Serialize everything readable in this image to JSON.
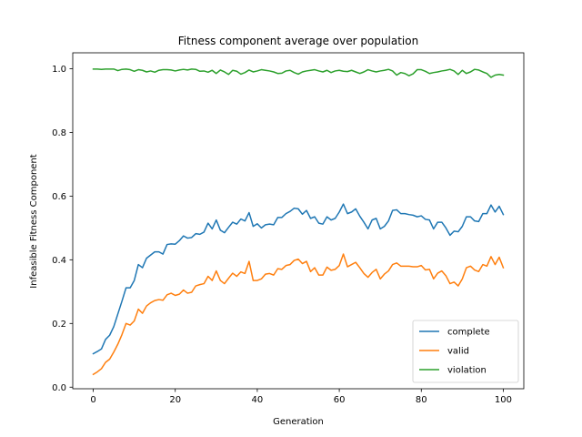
{
  "chart_data": {
    "type": "line",
    "title": "Fitness component average over population",
    "xlabel": "Generation",
    "ylabel": "Infeasible Fitness Component",
    "xlim": [
      -5,
      105
    ],
    "ylim": [
      -0.005,
      1.05
    ],
    "xticks": [
      0,
      20,
      40,
      60,
      80,
      100
    ],
    "yticks": [
      0.0,
      0.2,
      0.4,
      0.6,
      0.8,
      1.0
    ],
    "ytick_labels": [
      "0.0",
      "0.2",
      "0.4",
      "0.6",
      "0.8",
      "1.0"
    ],
    "legend_position": "lower-right",
    "grid": false,
    "x_start": 0,
    "x_step": 1,
    "series": [
      {
        "name": "complete",
        "color": "#1f77b4",
        "values": [
          0.105,
          0.112,
          0.12,
          0.15,
          0.163,
          0.19,
          0.23,
          0.27,
          0.312,
          0.312,
          0.335,
          0.385,
          0.375,
          0.405,
          0.415,
          0.425,
          0.425,
          0.418,
          0.448,
          0.45,
          0.449,
          0.46,
          0.475,
          0.468,
          0.47,
          0.482,
          0.48,
          0.487,
          0.515,
          0.497,
          0.525,
          0.493,
          0.485,
          0.502,
          0.518,
          0.512,
          0.528,
          0.522,
          0.548,
          0.505,
          0.513,
          0.5,
          0.51,
          0.512,
          0.51,
          0.533,
          0.533,
          0.545,
          0.552,
          0.562,
          0.56,
          0.543,
          0.555,
          0.53,
          0.535,
          0.515,
          0.512,
          0.535,
          0.525,
          0.53,
          0.55,
          0.575,
          0.545,
          0.55,
          0.56,
          0.537,
          0.518,
          0.497,
          0.525,
          0.53,
          0.497,
          0.505,
          0.522,
          0.555,
          0.557,
          0.545,
          0.545,
          0.542,
          0.54,
          0.535,
          0.538,
          0.527,
          0.525,
          0.497,
          0.518,
          0.518,
          0.5,
          0.477,
          0.49,
          0.488,
          0.505,
          0.535,
          0.535,
          0.522,
          0.52,
          0.545,
          0.545,
          0.572,
          0.55,
          0.568,
          0.542
        ]
      },
      {
        "name": "valid",
        "color": "#ff7f0e",
        "values": [
          0.04,
          0.048,
          0.058,
          0.078,
          0.088,
          0.11,
          0.135,
          0.165,
          0.2,
          0.195,
          0.208,
          0.245,
          0.232,
          0.255,
          0.265,
          0.272,
          0.275,
          0.273,
          0.29,
          0.295,
          0.288,
          0.292,
          0.305,
          0.295,
          0.298,
          0.318,
          0.322,
          0.325,
          0.348,
          0.335,
          0.365,
          0.335,
          0.325,
          0.342,
          0.358,
          0.348,
          0.362,
          0.357,
          0.395,
          0.335,
          0.335,
          0.34,
          0.355,
          0.357,
          0.352,
          0.372,
          0.37,
          0.382,
          0.385,
          0.398,
          0.402,
          0.388,
          0.395,
          0.363,
          0.375,
          0.352,
          0.352,
          0.377,
          0.367,
          0.37,
          0.382,
          0.418,
          0.378,
          0.385,
          0.392,
          0.375,
          0.357,
          0.345,
          0.36,
          0.37,
          0.34,
          0.355,
          0.365,
          0.385,
          0.39,
          0.38,
          0.38,
          0.38,
          0.378,
          0.378,
          0.382,
          0.368,
          0.37,
          0.34,
          0.358,
          0.365,
          0.35,
          0.325,
          0.33,
          0.318,
          0.34,
          0.375,
          0.38,
          0.368,
          0.363,
          0.385,
          0.38,
          0.41,
          0.385,
          0.408,
          0.375
        ]
      },
      {
        "name": "violation",
        "color": "#2ca02c",
        "values": [
          0.999,
          0.999,
          0.998,
          0.999,
          0.999,
          0.999,
          0.994,
          0.998,
          0.999,
          0.997,
          0.992,
          0.997,
          0.995,
          0.99,
          0.993,
          0.989,
          0.995,
          0.997,
          0.997,
          0.996,
          0.993,
          0.996,
          0.998,
          0.996,
          0.999,
          0.998,
          0.992,
          0.993,
          0.989,
          0.995,
          0.985,
          0.996,
          0.99,
          0.982,
          0.995,
          0.992,
          0.983,
          0.988,
          0.996,
          0.99,
          0.993,
          0.997,
          0.995,
          0.993,
          0.99,
          0.985,
          0.986,
          0.993,
          0.995,
          0.988,
          0.983,
          0.99,
          0.993,
          0.995,
          0.997,
          0.993,
          0.99,
          0.995,
          0.988,
          0.993,
          0.995,
          0.992,
          0.991,
          0.995,
          0.99,
          0.985,
          0.99,
          0.997,
          0.993,
          0.99,
          0.993,
          0.995,
          0.998,
          0.993,
          0.98,
          0.988,
          0.985,
          0.978,
          0.984,
          0.997,
          0.997,
          0.992,
          0.985,
          0.988,
          0.99,
          0.993,
          0.995,
          0.998,
          0.993,
          0.982,
          0.995,
          0.985,
          0.99,
          0.998,
          0.996,
          0.99,
          0.985,
          0.973,
          0.98,
          0.982,
          0.98
        ]
      }
    ]
  }
}
